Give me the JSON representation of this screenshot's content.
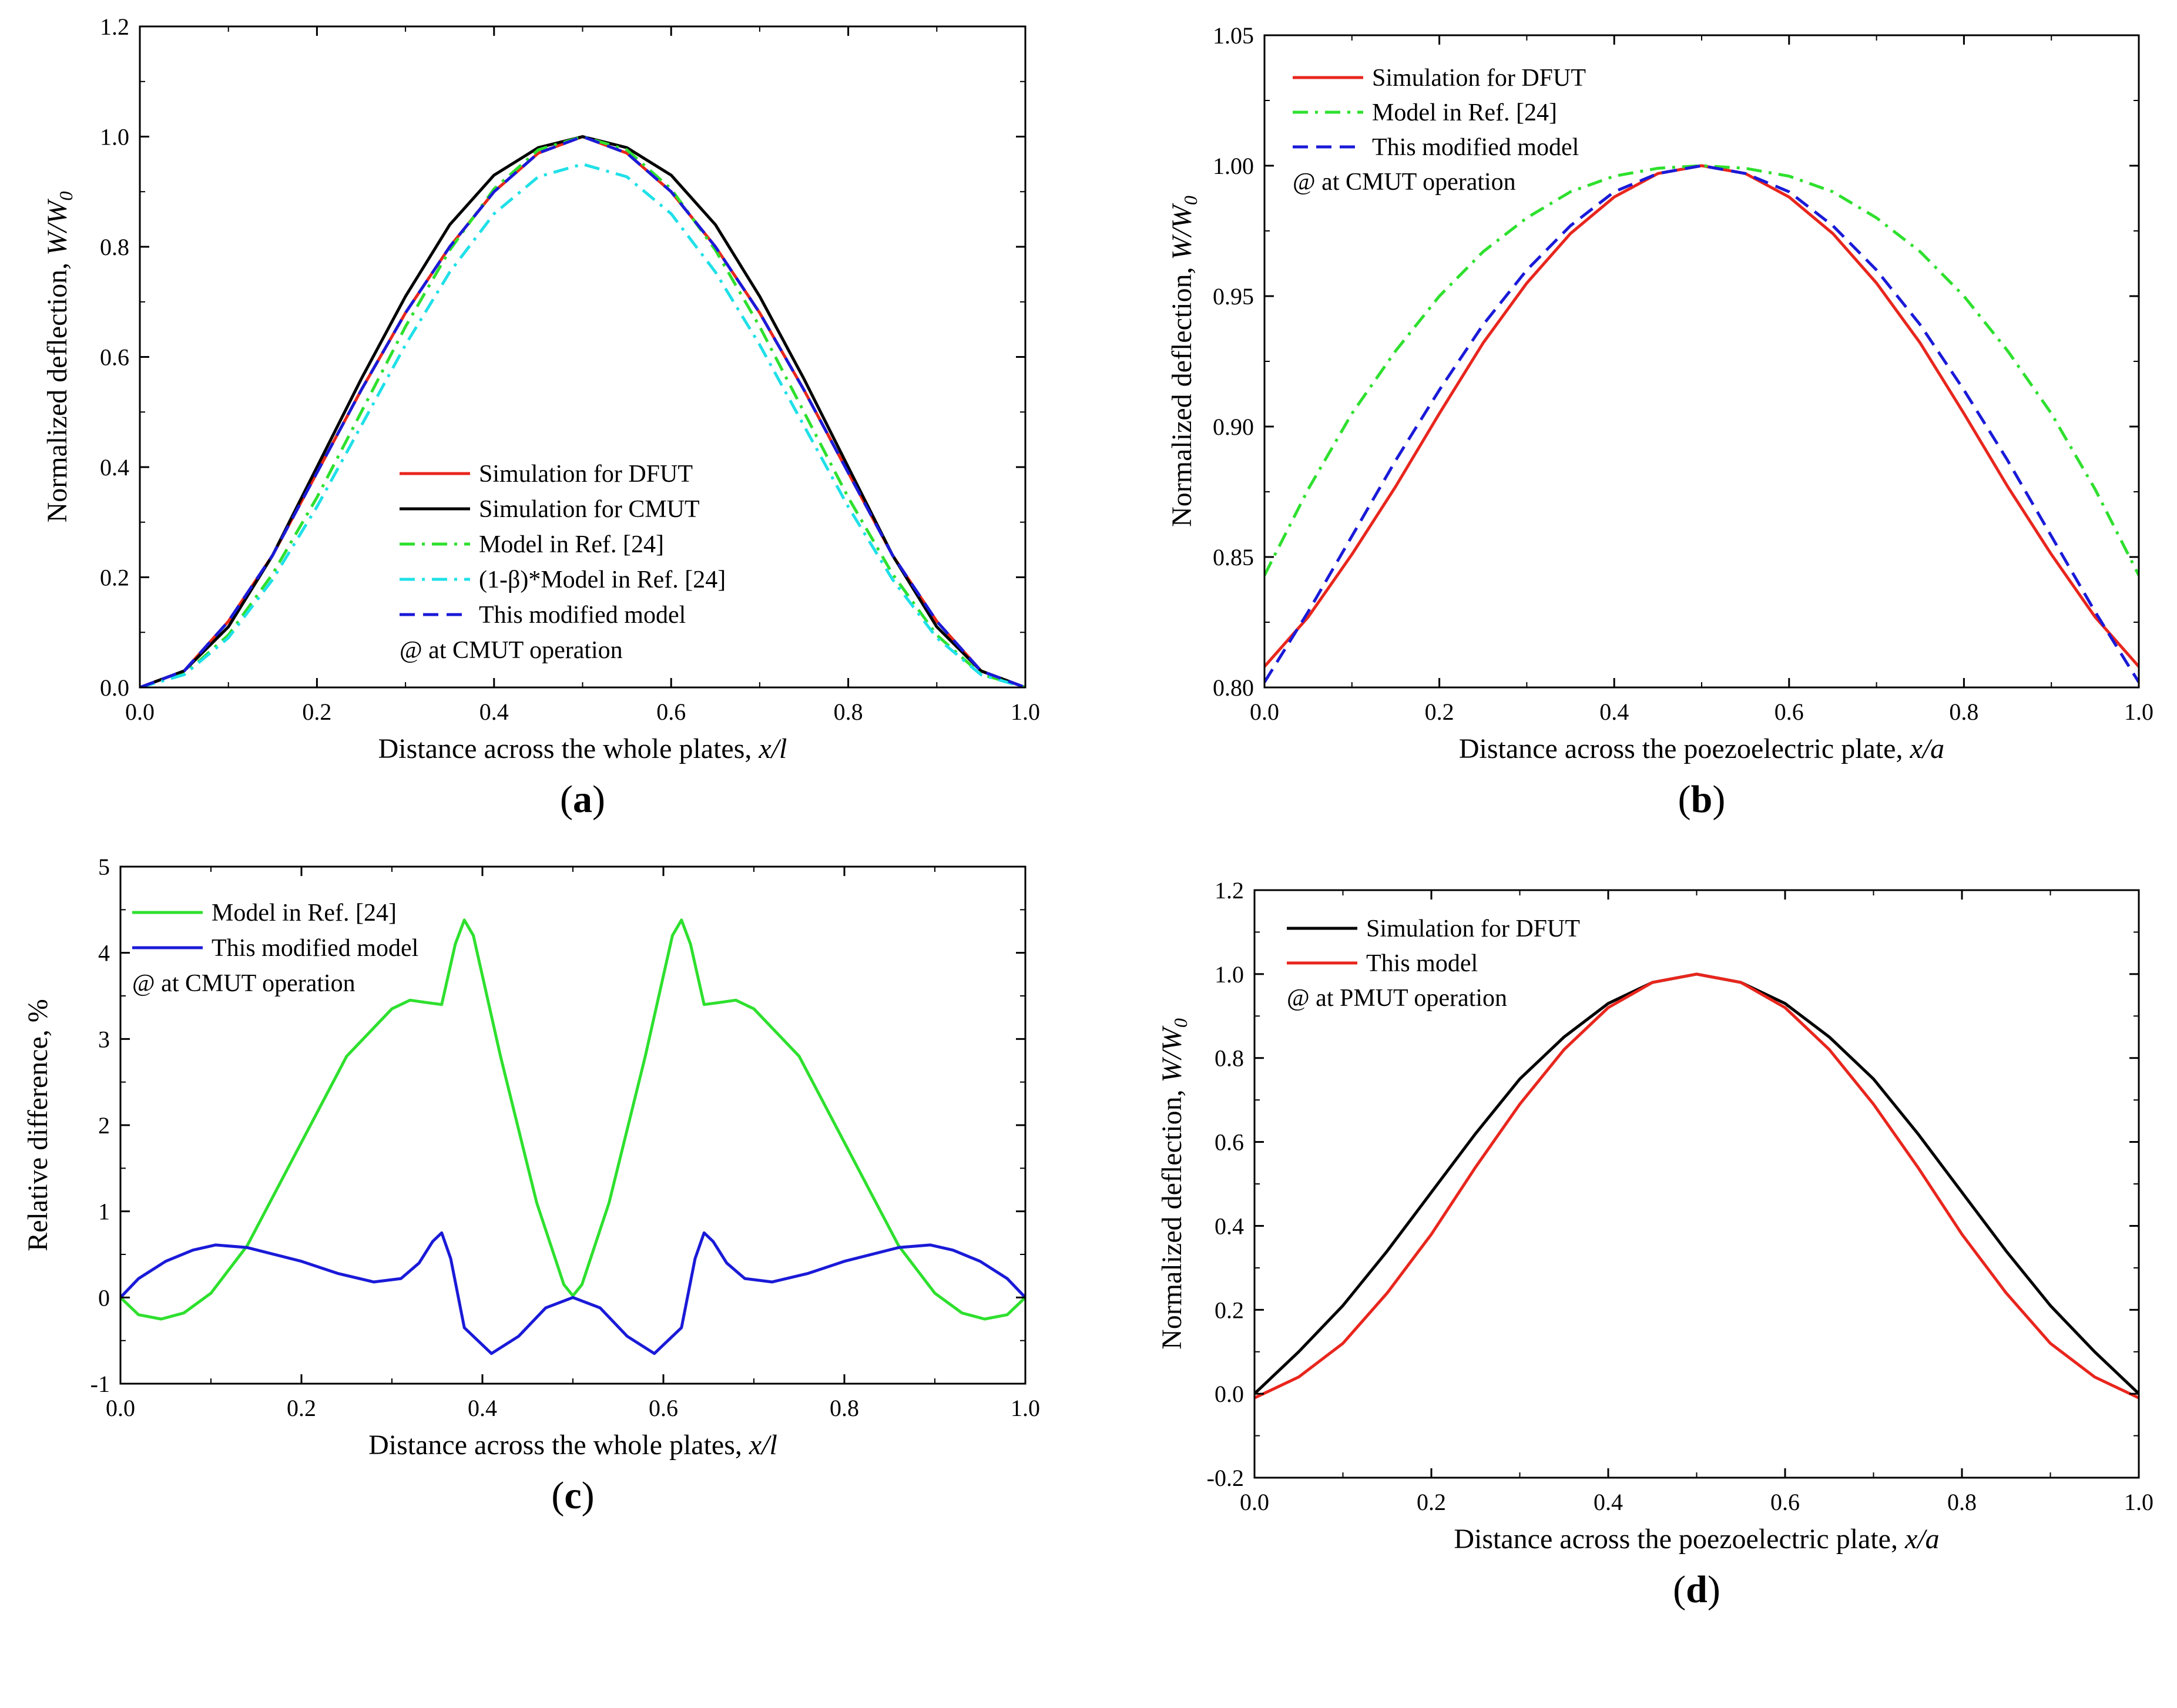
{
  "colors": {
    "red": "#e8261d",
    "black": "#000000",
    "green": "#2ee02e",
    "cyan": "#1fe0e8",
    "blue": "#1a1ad8"
  },
  "chart_data": [
    {
      "panel": "(a)",
      "type": "line",
      "xlabel": "Distance across the whole plates, x/l",
      "ylabel": "Normalized deflection, W/W0",
      "xlim": [
        0,
        1
      ],
      "ylim": [
        0,
        1.2
      ],
      "xticks": [
        "0.0",
        "0.2",
        "0.4",
        "0.6",
        "0.8",
        "1.0"
      ],
      "yticks": [
        "0.0",
        "0.2",
        "0.4",
        "0.6",
        "0.8",
        "1.0",
        "1.2"
      ],
      "legend": {
        "placement": "lower-center",
        "note": "@ at CMUT operation"
      },
      "x": [
        0,
        0.05,
        0.1,
        0.15,
        0.2,
        0.25,
        0.3,
        0.35,
        0.4,
        0.45,
        0.5,
        0.55,
        0.6,
        0.65,
        0.7,
        0.75,
        0.8,
        0.85,
        0.9,
        0.95,
        1.0
      ],
      "series": [
        {
          "name": "Simulation for DFUT",
          "color": "red",
          "dash": "solid",
          "values": [
            0,
            0.03,
            0.12,
            0.24,
            0.39,
            0.54,
            0.68,
            0.8,
            0.9,
            0.97,
            1.0,
            0.97,
            0.9,
            0.8,
            0.68,
            0.54,
            0.39,
            0.24,
            0.12,
            0.03,
            0
          ]
        },
        {
          "name": "Simulation for CMUT",
          "color": "black",
          "dash": "solid",
          "values": [
            0,
            0.03,
            0.11,
            0.24,
            0.4,
            0.56,
            0.71,
            0.84,
            0.93,
            0.98,
            1.0,
            0.98,
            0.93,
            0.84,
            0.71,
            0.56,
            0.4,
            0.24,
            0.11,
            0.03,
            0
          ]
        },
        {
          "name": "Model in Ref. [24]",
          "color": "green",
          "dash": "dashdot",
          "values": [
            0,
            0.024,
            0.095,
            0.206,
            0.345,
            0.5,
            0.655,
            0.794,
            0.905,
            0.976,
            1.0,
            0.976,
            0.905,
            0.794,
            0.655,
            0.5,
            0.345,
            0.206,
            0.095,
            0.024,
            0
          ]
        },
        {
          "name": "(1-β)*Model in Ref. [24]",
          "color": "cyan",
          "dash": "dashdot",
          "values": [
            0,
            0.023,
            0.09,
            0.196,
            0.328,
            0.475,
            0.622,
            0.754,
            0.86,
            0.927,
            0.95,
            0.927,
            0.86,
            0.754,
            0.622,
            0.475,
            0.328,
            0.196,
            0.09,
            0.023,
            0
          ]
        },
        {
          "name": "This modified model",
          "color": "blue",
          "dash": "dash",
          "values": [
            0,
            0.03,
            0.12,
            0.24,
            0.39,
            0.54,
            0.68,
            0.8,
            0.9,
            0.97,
            1.0,
            0.97,
            0.9,
            0.8,
            0.68,
            0.54,
            0.39,
            0.24,
            0.12,
            0.03,
            0
          ]
        }
      ]
    },
    {
      "panel": "(b)",
      "type": "line",
      "xlabel": "Distance across the poezoelectric plate, x/a",
      "ylabel": "Normalized deflection, W/W0",
      "xlim": [
        0,
        1
      ],
      "ylim": [
        0.8,
        1.05
      ],
      "xticks": [
        "0.0",
        "0.2",
        "0.4",
        "0.6",
        "0.8",
        "1.0"
      ],
      "yticks": [
        "0.80",
        "0.85",
        "0.90",
        "0.95",
        "1.00",
        "1.05"
      ],
      "legend": {
        "placement": "top-left",
        "note": "@ at CMUT operation"
      },
      "x": [
        0,
        0.05,
        0.1,
        0.15,
        0.2,
        0.25,
        0.3,
        0.35,
        0.4,
        0.45,
        0.5,
        0.55,
        0.6,
        0.65,
        0.7,
        0.75,
        0.8,
        0.85,
        0.9,
        0.95,
        1.0
      ],
      "series": [
        {
          "name": "Simulation for DFUT",
          "color": "red",
          "dash": "solid",
          "values": [
            0.808,
            0.827,
            0.851,
            0.877,
            0.905,
            0.932,
            0.955,
            0.974,
            0.988,
            0.997,
            1.0,
            0.997,
            0.988,
            0.974,
            0.955,
            0.932,
            0.905,
            0.877,
            0.851,
            0.827,
            0.808
          ]
        },
        {
          "name": "Model in Ref. [24]",
          "color": "green",
          "dash": "dashdot",
          "values": [
            0.843,
            0.876,
            0.905,
            0.929,
            0.95,
            0.967,
            0.98,
            0.99,
            0.996,
            0.999,
            1.0,
            0.999,
            0.996,
            0.99,
            0.98,
            0.967,
            0.95,
            0.929,
            0.905,
            0.876,
            0.843
          ]
        },
        {
          "name": "This modified model",
          "color": "blue",
          "dash": "dash",
          "values": [
            0.802,
            0.829,
            0.858,
            0.887,
            0.914,
            0.939,
            0.96,
            0.977,
            0.99,
            0.997,
            1.0,
            0.997,
            0.99,
            0.977,
            0.96,
            0.939,
            0.914,
            0.887,
            0.858,
            0.829,
            0.802
          ]
        }
      ]
    },
    {
      "panel": "(c)",
      "type": "line",
      "xlabel": "Distance across the whole plates, x/l",
      "ylabel": "Relative difference, %",
      "xlim": [
        0,
        1
      ],
      "ylim": [
        -1,
        5
      ],
      "xticks": [
        "0.0",
        "0.2",
        "0.4",
        "0.6",
        "0.8",
        "1.0"
      ],
      "yticks": [
        "-1",
        "0",
        "1",
        "2",
        "3",
        "4",
        "5"
      ],
      "legend": {
        "placement": "top-left",
        "note": "@ at CMUT operation"
      },
      "series": [
        {
          "name": "Model in Ref. [24]",
          "color": "green",
          "dash": "solid",
          "x": [
            0,
            0.02,
            0.045,
            0.07,
            0.1,
            0.14,
            0.2,
            0.25,
            0.3,
            0.32,
            0.34,
            0.355,
            0.37,
            0.38,
            0.39,
            0.42,
            0.46,
            0.49,
            0.5,
            0.51,
            0.54,
            0.58,
            0.61,
            0.62,
            0.63,
            0.645,
            0.66,
            0.68,
            0.7,
            0.75,
            0.8,
            0.86,
            0.9,
            0.93,
            0.955,
            0.98,
            1.0
          ],
          "values": [
            0,
            -0.2,
            -0.25,
            -0.18,
            0.05,
            0.6,
            1.8,
            2.8,
            3.35,
            3.45,
            3.42,
            3.4,
            4.1,
            4.38,
            4.2,
            2.8,
            1.1,
            0.15,
            0.02,
            0.15,
            1.1,
            2.8,
            4.2,
            4.38,
            4.1,
            3.4,
            3.42,
            3.45,
            3.35,
            2.8,
            1.8,
            0.6,
            0.05,
            -0.18,
            -0.25,
            -0.2,
            0
          ]
        },
        {
          "name": "This modified model",
          "color": "blue",
          "dash": "solid",
          "x": [
            0,
            0.02,
            0.05,
            0.08,
            0.105,
            0.14,
            0.2,
            0.24,
            0.28,
            0.31,
            0.33,
            0.345,
            0.355,
            0.365,
            0.38,
            0.41,
            0.44,
            0.47,
            0.5,
            0.53,
            0.56,
            0.59,
            0.62,
            0.635,
            0.645,
            0.655,
            0.67,
            0.69,
            0.72,
            0.76,
            0.8,
            0.86,
            0.895,
            0.92,
            0.95,
            0.98,
            1.0
          ],
          "values": [
            0,
            0.22,
            0.42,
            0.55,
            0.61,
            0.58,
            0.42,
            0.28,
            0.18,
            0.22,
            0.4,
            0.65,
            0.75,
            0.45,
            -0.35,
            -0.65,
            -0.45,
            -0.12,
            0.0,
            -0.12,
            -0.45,
            -0.65,
            -0.35,
            0.45,
            0.75,
            0.65,
            0.4,
            0.22,
            0.18,
            0.28,
            0.42,
            0.58,
            0.61,
            0.55,
            0.42,
            0.22,
            0
          ]
        }
      ]
    },
    {
      "panel": "(d)",
      "type": "line",
      "xlabel": "Distance across the poezoelectric plate, x/a",
      "ylabel": "Normalized deflection, W/W0",
      "xlim": [
        0,
        1
      ],
      "ylim": [
        -0.2,
        1.2
      ],
      "xticks": [
        "0.0",
        "0.2",
        "0.4",
        "0.6",
        "0.8",
        "1.0"
      ],
      "yticks": [
        "-0.2",
        "0.0",
        "0.2",
        "0.4",
        "0.6",
        "0.8",
        "1.0",
        "1.2"
      ],
      "legend": {
        "placement": "top-left",
        "note": "@ at PMUT operation"
      },
      "x": [
        0,
        0.05,
        0.1,
        0.15,
        0.2,
        0.25,
        0.3,
        0.35,
        0.4,
        0.45,
        0.5,
        0.55,
        0.6,
        0.65,
        0.7,
        0.75,
        0.8,
        0.85,
        0.9,
        0.95,
        1.0
      ],
      "series": [
        {
          "name": "Simulation for DFUT",
          "color": "black",
          "dash": "solid",
          "values": [
            0,
            0.1,
            0.21,
            0.34,
            0.48,
            0.62,
            0.75,
            0.85,
            0.93,
            0.98,
            1.0,
            0.98,
            0.93,
            0.85,
            0.75,
            0.62,
            0.48,
            0.34,
            0.21,
            0.1,
            0
          ]
        },
        {
          "name": "This model",
          "color": "red",
          "dash": "solid",
          "values": [
            -0.01,
            0.04,
            0.12,
            0.24,
            0.38,
            0.54,
            0.69,
            0.82,
            0.92,
            0.98,
            1.0,
            0.98,
            0.92,
            0.82,
            0.69,
            0.54,
            0.38,
            0.24,
            0.12,
            0.04,
            -0.01
          ]
        }
      ]
    }
  ]
}
